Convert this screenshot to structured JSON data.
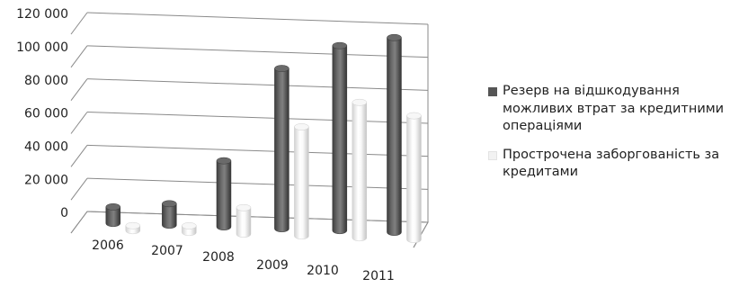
{
  "chart_data": {
    "type": "bar",
    "style": "3d-cylinder",
    "categories": [
      "2006",
      "2007",
      "2008",
      "2009",
      "2010",
      "2011"
    ],
    "series": [
      {
        "name": "Резерв на відшкодування можливих втрат за кредитними операціями",
        "values": [
          10000,
          13000,
          40000,
          97000,
          112000,
          118000
        ],
        "color": "#555555"
      },
      {
        "name": "Прострочена заборгованість за кредитами",
        "values": [
          3000,
          4000,
          16000,
          66000,
          82000,
          75000
        ],
        "color": "#f2f2f2"
      }
    ],
    "y_ticks": [
      "0",
      "20 000",
      "40 000",
      "60 000",
      "80 000",
      "100 000",
      "120 000"
    ],
    "ylim": [
      0,
      120000
    ],
    "grid": true,
    "legend_position": "right",
    "title": "",
    "xlabel": "",
    "ylabel": ""
  }
}
